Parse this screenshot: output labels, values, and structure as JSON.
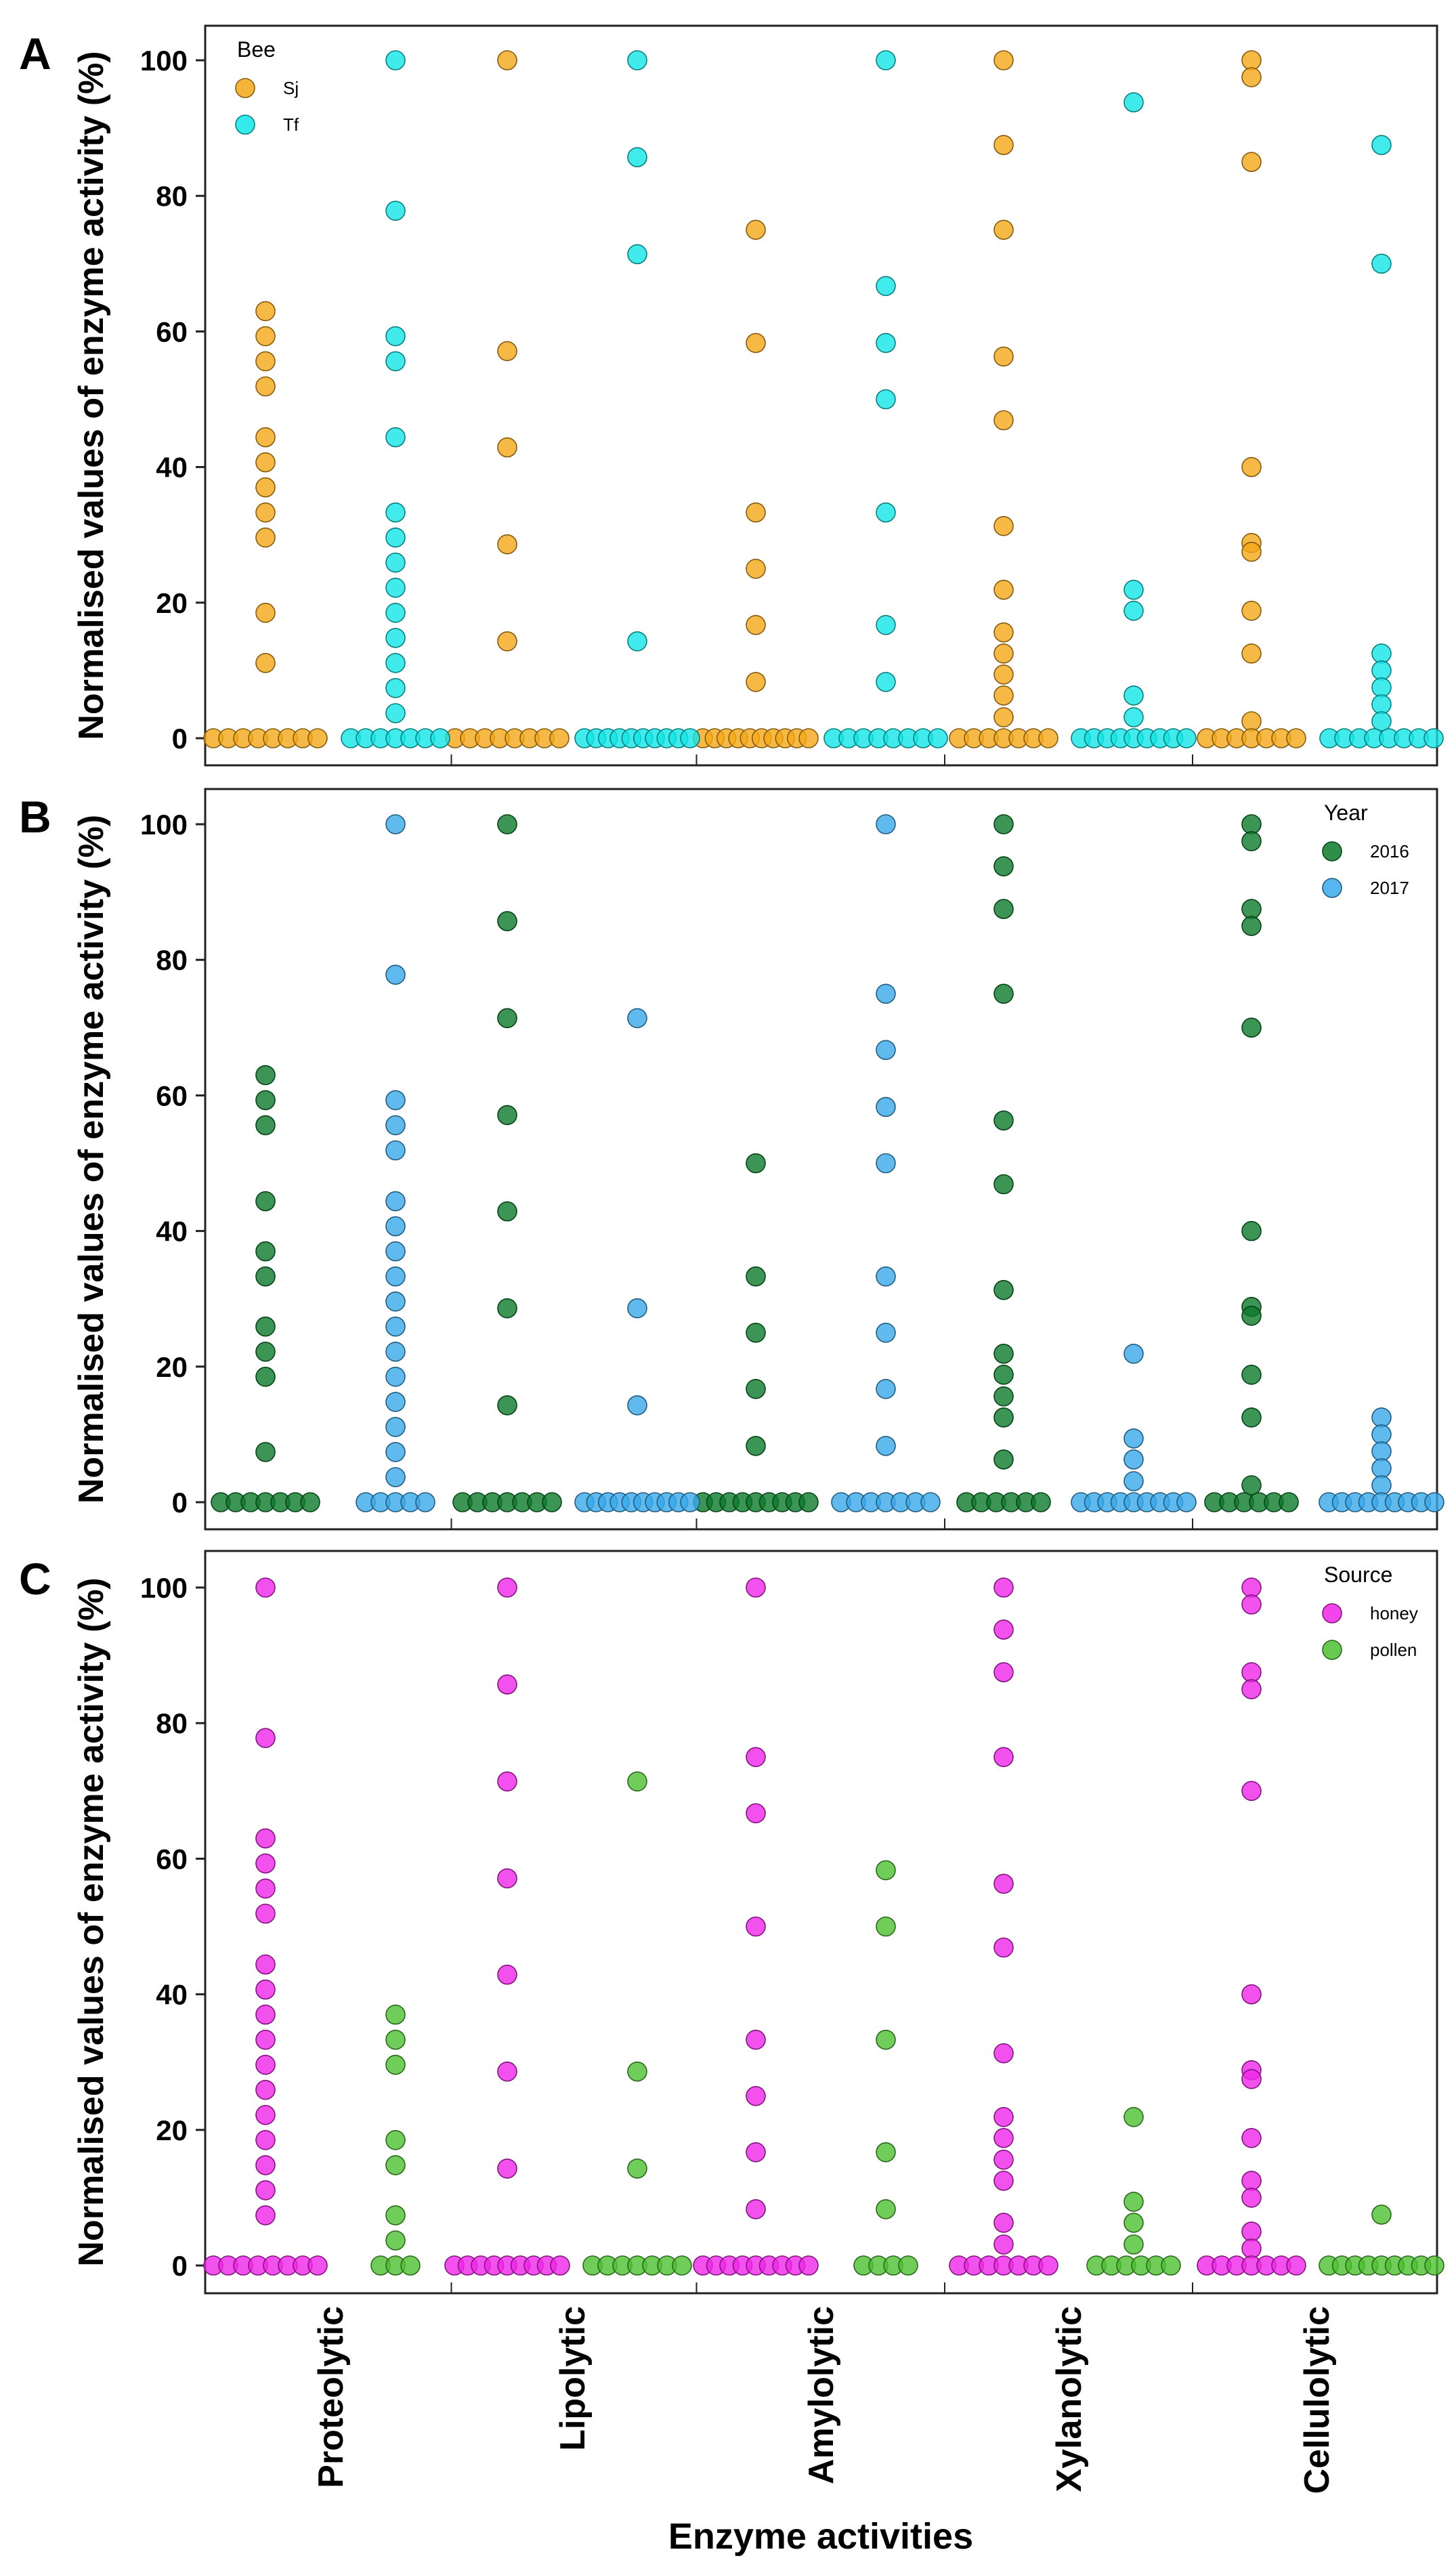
{
  "figure": {
    "x_title": "Enzyme activities",
    "categories": [
      "Proteolytic",
      "Lipolytic",
      "Amylolytic",
      "Xylanolytic",
      "Cellulolytic"
    ],
    "y_ticks": [
      "0",
      "20",
      "40",
      "60",
      "80",
      "100"
    ]
  },
  "chart_data": [
    {
      "type": "scatter",
      "panel": "A",
      "ylabel": "Normalised values of enzyme activity (%)",
      "xlabel": "",
      "ylim": [
        0,
        100
      ],
      "legend": {
        "title": "Bee",
        "position": "top-left"
      },
      "categories": [
        "Proteolytic",
        "Lipolytic",
        "Amylolytic",
        "Xylanolytic",
        "Cellulolytic"
      ],
      "series": [
        {
          "name": "Sj",
          "color": "#f5a818",
          "values": [
            [
              63,
              59.3,
              55.6,
              51.9,
              44.4,
              40.7,
              37,
              33.3,
              29.6,
              18.5,
              11.1,
              0,
              0,
              0,
              0,
              0,
              0,
              0,
              0
            ],
            [
              100,
              57.1,
              42.9,
              28.6,
              14.3,
              0,
              0,
              0,
              0,
              0,
              0,
              0,
              0
            ],
            [
              75,
              58.3,
              33.3,
              25,
              16.7,
              8.3,
              0,
              0,
              0,
              0,
              0,
              0,
              0,
              0,
              0,
              0
            ],
            [
              100,
              87.5,
              75,
              56.3,
              46.9,
              31.3,
              21.9,
              15.6,
              12.5,
              9.4,
              6.3,
              3.1,
              0,
              0,
              0,
              0,
              0,
              0,
              0
            ],
            [
              100,
              97.5,
              85,
              40,
              28.8,
              27.5,
              18.8,
              12.5,
              2.5,
              0,
              0,
              0,
              0,
              0,
              0,
              0
            ]
          ]
        },
        {
          "name": "Tf",
          "color": "#12e6e6",
          "values": [
            [
              100,
              77.8,
              59.3,
              55.6,
              44.4,
              33.3,
              29.6,
              25.9,
              22.2,
              18.5,
              14.8,
              11.1,
              7.4,
              3.7,
              0,
              0,
              0,
              0,
              0,
              0,
              0
            ],
            [
              100,
              85.7,
              71.4,
              14.3,
              0,
              0,
              0,
              0,
              0,
              0,
              0,
              0,
              0,
              0
            ],
            [
              100,
              66.7,
              58.3,
              50,
              33.3,
              16.7,
              8.3,
              0,
              0,
              0,
              0,
              0,
              0,
              0,
              0
            ],
            [
              93.8,
              21.9,
              18.8,
              6.3,
              3.1,
              0,
              0,
              0,
              0,
              0,
              0,
              0,
              0,
              0
            ],
            [
              87.5,
              70,
              12.5,
              10,
              7.5,
              5,
              2.5,
              0,
              0,
              0,
              0,
              0,
              0,
              0,
              0
            ]
          ]
        }
      ]
    },
    {
      "type": "scatter",
      "panel": "B",
      "ylabel": "Normalised values of enzyme activity (%)",
      "xlabel": "",
      "ylim": [
        0,
        100
      ],
      "legend": {
        "title": "Year",
        "position": "top-right"
      },
      "categories": [
        "Proteolytic",
        "Lipolytic",
        "Amylolytic",
        "Xylanolytic",
        "Cellulolytic"
      ],
      "series": [
        {
          "name": "2016",
          "color": "#0b7a2a",
          "values": [
            [
              63,
              59.3,
              55.6,
              44.4,
              37,
              33.3,
              25.9,
              22.2,
              18.5,
              7.4,
              0,
              0,
              0,
              0,
              0,
              0,
              0
            ],
            [
              100,
              85.7,
              71.4,
              57.1,
              42.9,
              28.6,
              14.3,
              0,
              0,
              0,
              0,
              0,
              0,
              0
            ],
            [
              50,
              33.3,
              25,
              16.7,
              8.3,
              0,
              0,
              0,
              0,
              0,
              0,
              0,
              0,
              0
            ],
            [
              100,
              93.8,
              87.5,
              75,
              56.3,
              46.9,
              31.3,
              21.9,
              18.8,
              15.6,
              12.5,
              6.3,
              0,
              0,
              0,
              0,
              0,
              0
            ],
            [
              100,
              97.5,
              87.5,
              85,
              70,
              40,
              28.8,
              27.5,
              18.8,
              12.5,
              2.5,
              0,
              0,
              0,
              0,
              0,
              0
            ]
          ]
        },
        {
          "name": "2017",
          "color": "#3aa9ea",
          "values": [
            [
              100,
              77.8,
              59.3,
              55.6,
              51.9,
              44.4,
              40.7,
              37,
              33.3,
              29.6,
              25.9,
              22.2,
              18.5,
              14.8,
              11.1,
              7.4,
              3.7,
              0,
              0,
              0,
              0,
              0
            ],
            [
              71.4,
              28.6,
              14.3,
              0,
              0,
              0,
              0,
              0,
              0,
              0,
              0,
              0,
              0
            ],
            [
              100,
              75,
              66.7,
              58.3,
              50,
              33.3,
              25,
              16.7,
              8.3,
              0,
              0,
              0,
              0,
              0,
              0,
              0
            ],
            [
              21.9,
              9.4,
              6.3,
              3.1,
              0,
              0,
              0,
              0,
              0,
              0,
              0,
              0,
              0
            ],
            [
              12.5,
              10,
              7.5,
              5,
              2.5,
              0,
              0,
              0,
              0,
              0,
              0,
              0,
              0,
              0
            ]
          ]
        }
      ]
    },
    {
      "type": "scatter",
      "panel": "C",
      "ylabel": "Normalised values of enzyme activity (%)",
      "xlabel": "Enzyme activities",
      "ylim": [
        0,
        100
      ],
      "legend": {
        "title": "Source",
        "position": "top-right"
      },
      "categories": [
        "Proteolytic",
        "Lipolytic",
        "Amylolytic",
        "Xylanolytic",
        "Cellulolytic"
      ],
      "series": [
        {
          "name": "honey",
          "color": "#f025e8",
          "values": [
            [
              100,
              77.8,
              63,
              59.3,
              55.6,
              51.9,
              44.4,
              40.7,
              37,
              33.3,
              29.6,
              25.9,
              22.2,
              18.5,
              14.8,
              11.1,
              7.4,
              0,
              0,
              0,
              0,
              0,
              0,
              0,
              0
            ],
            [
              100,
              85.7,
              71.4,
              57.1,
              42.9,
              28.6,
              14.3,
              0,
              0,
              0,
              0,
              0,
              0,
              0,
              0,
              0
            ],
            [
              100,
              75,
              66.7,
              50,
              33.3,
              25,
              16.7,
              8.3,
              0,
              0,
              0,
              0,
              0,
              0,
              0,
              0,
              0
            ],
            [
              100,
              93.8,
              87.5,
              75,
              56.3,
              46.9,
              31.3,
              21.9,
              18.8,
              15.6,
              12.5,
              6.3,
              3.1,
              0,
              0,
              0,
              0,
              0,
              0,
              0
            ],
            [
              100,
              97.5,
              87.5,
              85,
              70,
              40,
              28.8,
              27.5,
              18.8,
              12.5,
              10,
              5,
              2.5,
              0,
              0,
              0,
              0,
              0,
              0,
              0
            ]
          ]
        },
        {
          "name": "pollen",
          "color": "#4cc030",
          "values": [
            [
              37,
              33.3,
              29.6,
              18.5,
              14.8,
              7.4,
              3.7,
              0,
              0,
              0
            ],
            [
              71.4,
              28.6,
              14.3,
              0,
              0,
              0,
              0,
              0,
              0,
              0
            ],
            [
              58.3,
              50,
              33.3,
              16.7,
              8.3,
              0,
              0,
              0,
              0
            ],
            [
              21.9,
              9.4,
              6.3,
              3.1,
              0,
              0,
              0,
              0,
              0,
              0
            ],
            [
              7.5,
              0,
              0,
              0,
              0,
              0,
              0,
              0,
              0,
              0
            ]
          ]
        }
      ]
    }
  ]
}
